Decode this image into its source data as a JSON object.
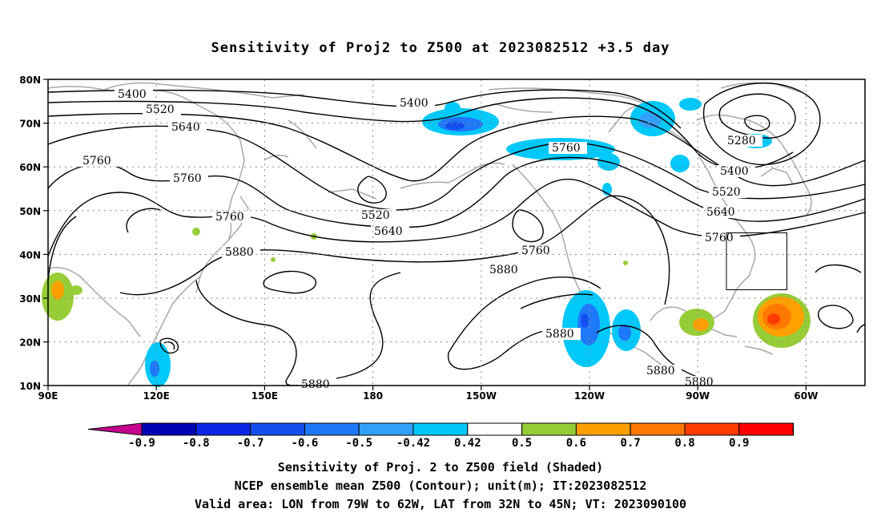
{
  "title": "Sensitivity of Proj2 to Z500 at 2023082512 +3.5 day",
  "map": {
    "lat_ticks": [
      "80N",
      "70N",
      "60N",
      "50N",
      "40N",
      "30N",
      "20N",
      "10N"
    ],
    "lon_ticks": [
      "90E",
      "120E",
      "150E",
      "180",
      "150W",
      "120W",
      "90W",
      "60W"
    ],
    "contour_labels": [
      {
        "text": "5400",
        "id": "c5400a"
      },
      {
        "text": "5520",
        "id": "c5520a"
      },
      {
        "text": "5640",
        "id": "c5640a"
      },
      {
        "text": "5760",
        "id": "c5760a"
      },
      {
        "text": "5760",
        "id": "c5760b"
      },
      {
        "text": "5760",
        "id": "c5760c"
      },
      {
        "text": "5880",
        "id": "c5880a"
      },
      {
        "text": "5400",
        "id": "c5400b"
      },
      {
        "text": "5520",
        "id": "c5520b"
      },
      {
        "text": "5640",
        "id": "c5640b"
      },
      {
        "text": "5760",
        "id": "c5760d"
      },
      {
        "text": "5760",
        "id": "c5760e"
      },
      {
        "text": "5880",
        "id": "c5880b"
      },
      {
        "text": "5880",
        "id": "c5880c"
      },
      {
        "text": "5880",
        "id": "c5880d"
      },
      {
        "text": "5880",
        "id": "c5880e"
      },
      {
        "text": "5880",
        "id": "c5880f"
      },
      {
        "text": "5280",
        "id": "c5280"
      },
      {
        "text": "5400",
        "id": "c5400c"
      },
      {
        "text": "5520",
        "id": "c5520c"
      },
      {
        "text": "5640",
        "id": "c5640c"
      },
      {
        "text": "5760",
        "id": "c5760f"
      }
    ],
    "valid_box": {
      "lon_min": "79W",
      "lon_max": "62W",
      "lat_min": "32N",
      "lat_max": "45N"
    }
  },
  "colorbar": {
    "labels": [
      "-0.9",
      "-0.8",
      "-0.7",
      "-0.6",
      "-0.5",
      "-0.42",
      "0.42",
      "0.5",
      "0.6",
      "0.7",
      "0.8",
      "0.9"
    ],
    "colors": [
      "#c4008c",
      "#0000b4",
      "#0a28e6",
      "#1450f0",
      "#1e78fa",
      "#32a0fa",
      "#00c8fa",
      "#ffffff",
      "#96cd37",
      "#ffa000",
      "#ff7800",
      "#ff3c00",
      "#ff0000",
      "#f8a0c8"
    ]
  },
  "footer": {
    "line1": "Sensitivity of Proj. 2 to Z500 field (Shaded)",
    "line2": "NCEP ensemble mean Z500 (Contour); unit(m); IT:2023082512",
    "line3": "Valid area: LON from 79W to 62W, LAT from 32N to 45N; VT: 2023090100"
  }
}
